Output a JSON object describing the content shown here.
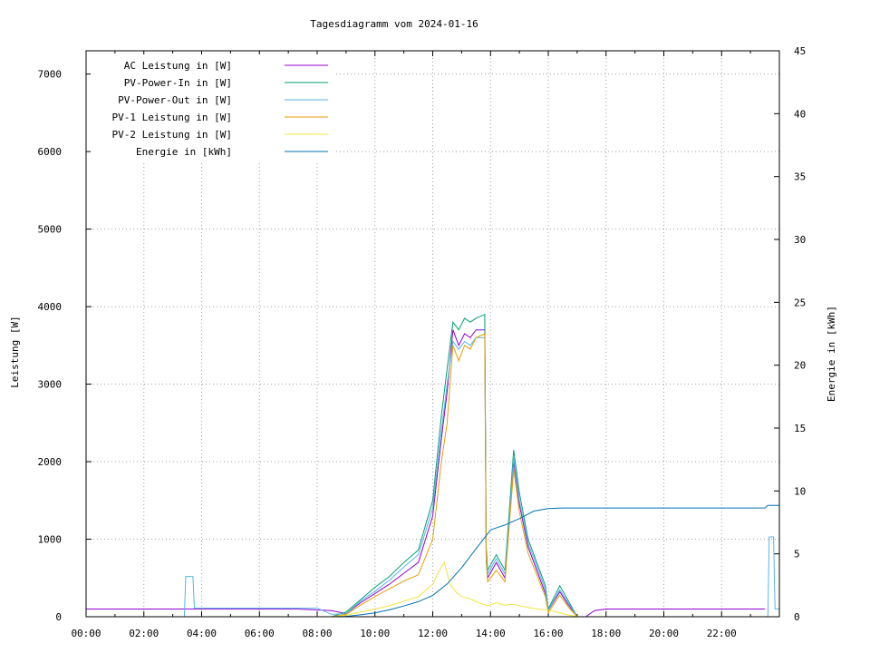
{
  "chart_data": {
    "type": "line",
    "title": "Tagesdiagramm vom 2024-01-16",
    "xlabel": "",
    "ylabel": "Leistung [W]",
    "y2label": "Energie in [kWh]",
    "xlim": [
      0,
      24
    ],
    "ylim": [
      0,
      7300
    ],
    "y2lim": [
      0,
      45
    ],
    "x_ticks": [
      "00:00",
      "02:00",
      "04:00",
      "06:00",
      "08:00",
      "10:00",
      "12:00",
      "14:00",
      "16:00",
      "18:00",
      "20:00",
      "22:00"
    ],
    "x_tick_values": [
      0,
      2,
      4,
      6,
      8,
      10,
      12,
      14,
      16,
      18,
      20,
      22
    ],
    "y_ticks": [
      0,
      1000,
      2000,
      3000,
      4000,
      5000,
      6000,
      7000
    ],
    "y2_ticks": [
      0,
      5,
      10,
      15,
      20,
      25,
      30,
      35,
      40,
      45
    ],
    "grid": true,
    "legend_position": "top-left",
    "series": [
      {
        "name": "AC Leistung in [W]",
        "axis": "left",
        "color": "#9400d3",
        "x": [
          0,
          3.4,
          3.8,
          7.3,
          8.5,
          9.0,
          9.5,
          10.0,
          10.5,
          11.0,
          11.5,
          12.0,
          12.3,
          12.5,
          12.7,
          12.9,
          13.1,
          13.3,
          13.5,
          13.8,
          13.85,
          13.9,
          14.2,
          14.5,
          14.8,
          15.0,
          15.3,
          15.6,
          15.9,
          16.0,
          16.4,
          16.7,
          17.0,
          17.3,
          17.6,
          18.0,
          20.0,
          22.0,
          23.5
        ],
        "y": [
          100,
          100,
          100,
          100,
          80,
          40,
          180,
          300,
          420,
          560,
          700,
          1300,
          2300,
          2900,
          3700,
          3500,
          3650,
          3600,
          3700,
          3700,
          800,
          500,
          700,
          500,
          2000,
          1450,
          900,
          600,
          300,
          80,
          320,
          150,
          0,
          0,
          80,
          100,
          100,
          100,
          100
        ]
      },
      {
        "name": "PV-Power-In in [W]",
        "axis": "left",
        "color": "#009e73",
        "x": [
          0,
          8.5,
          9.0,
          9.5,
          10.0,
          10.5,
          11.0,
          11.5,
          12.0,
          12.3,
          12.5,
          12.7,
          12.9,
          13.1,
          13.3,
          13.5,
          13.8,
          13.85,
          13.9,
          14.2,
          14.5,
          14.8,
          15.0,
          15.3,
          15.6,
          15.9,
          16.0,
          16.4,
          16.7,
          17.0,
          17.3,
          24.0
        ],
        "y": [
          0,
          0,
          60,
          220,
          380,
          520,
          700,
          860,
          1500,
          2600,
          3200,
          3800,
          3700,
          3850,
          3800,
          3850,
          3900,
          900,
          600,
          800,
          600,
          2150,
          1600,
          1000,
          700,
          400,
          100,
          400,
          200,
          0,
          0,
          0
        ]
      },
      {
        "name": "PV-Power-Out in [W]",
        "axis": "left",
        "color": "#56b4e9",
        "x": [
          0,
          3.4,
          3.45,
          3.7,
          3.75,
          8.0,
          8.5,
          9.0,
          9.5,
          10.0,
          10.5,
          11.0,
          11.5,
          12.0,
          12.3,
          12.5,
          12.7,
          12.9,
          13.1,
          13.3,
          13.5,
          13.8,
          13.85,
          13.9,
          14.2,
          14.5,
          14.8,
          15.0,
          15.3,
          15.6,
          15.9,
          16.0,
          16.4,
          16.7,
          17.0,
          17.3,
          23.6,
          23.65,
          23.8,
          23.85,
          24.0
        ],
        "y": [
          0,
          0,
          520,
          520,
          110,
          110,
          30,
          40,
          200,
          330,
          470,
          640,
          800,
          1400,
          2400,
          3000,
          3550,
          3450,
          3550,
          3500,
          3600,
          3600,
          800,
          550,
          750,
          550,
          2050,
          1500,
          950,
          650,
          350,
          80,
          350,
          170,
          0,
          0,
          0,
          1030,
          1030,
          100,
          100
        ]
      },
      {
        "name": "PV-1 Leistung in [W]",
        "axis": "left",
        "color": "#e69f00",
        "x": [
          0,
          8.5,
          9.0,
          9.5,
          10.0,
          10.5,
          11.0,
          11.5,
          12.0,
          12.3,
          12.5,
          12.7,
          12.9,
          13.1,
          13.3,
          13.5,
          13.8,
          13.85,
          13.9,
          14.2,
          14.5,
          14.8,
          15.0,
          15.3,
          15.6,
          15.9,
          16.0,
          16.4,
          16.7,
          17.0,
          24.0
        ],
        "y": [
          0,
          0,
          30,
          150,
          260,
          360,
          460,
          540,
          1000,
          2000,
          2500,
          3500,
          3300,
          3500,
          3450,
          3600,
          3650,
          700,
          450,
          600,
          450,
          1900,
          1350,
          820,
          540,
          260,
          50,
          280,
          120,
          0,
          0
        ]
      },
      {
        "name": "PV-2 Leistung in [W]",
        "axis": "left",
        "color": "#f0e442",
        "x": [
          0,
          8.5,
          9.0,
          9.5,
          10.0,
          10.5,
          11.0,
          11.5,
          12.0,
          12.2,
          12.4,
          12.6,
          12.8,
          13.0,
          13.3,
          13.6,
          13.9,
          14.2,
          14.5,
          14.8,
          15.0,
          15.3,
          15.6,
          15.9,
          16.2,
          16.6,
          17.0,
          24.0
        ],
        "y": [
          0,
          0,
          20,
          60,
          100,
          140,
          200,
          260,
          420,
          580,
          700,
          420,
          320,
          260,
          230,
          180,
          140,
          180,
          150,
          160,
          140,
          120,
          100,
          90,
          70,
          30,
          0,
          0
        ]
      },
      {
        "name": "Energie in [kWh]",
        "axis": "right",
        "color": "#0072b2",
        "x": [
          0,
          8.5,
          9.0,
          9.5,
          10.0,
          10.5,
          11.0,
          11.5,
          12.0,
          12.5,
          13.0,
          13.5,
          14.0,
          14.5,
          15.0,
          15.5,
          16.0,
          16.5,
          17.0,
          18.0,
          23.5,
          23.6,
          24.0
        ],
        "y": [
          0,
          0,
          0.03,
          0.15,
          0.3,
          0.55,
          0.85,
          1.2,
          1.7,
          2.6,
          3.9,
          5.4,
          6.9,
          7.3,
          7.8,
          8.4,
          8.6,
          8.65,
          8.65,
          8.65,
          8.65,
          8.85,
          8.85
        ]
      }
    ]
  }
}
